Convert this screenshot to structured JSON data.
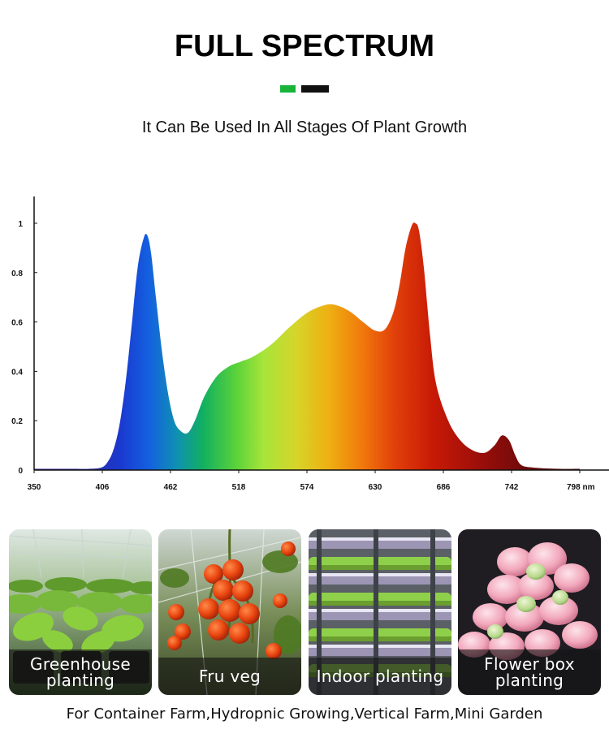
{
  "header": {
    "title": "FULL SPECTRUM",
    "subtitle": "It Can Be Used In All Stages Of Plant Growth",
    "accent_colors": [
      "#18b339",
      "#111111"
    ]
  },
  "chart_data": {
    "type": "area",
    "title": "",
    "xlabel": "",
    "ylabel": "",
    "x_unit": "nm",
    "xlim": [
      350,
      798
    ],
    "ylim": [
      0,
      1.1
    ],
    "x_ticks": [
      350,
      406,
      462,
      518,
      574,
      630,
      686,
      742,
      798
    ],
    "y_ticks": [
      0,
      0.2,
      0.4,
      0.6,
      0.8,
      1
    ],
    "grid": false,
    "legend": "none",
    "fill": "visible-spectrum gradient",
    "series": [
      {
        "x": [
          350,
          380,
          395,
          405,
          410,
          415,
          420,
          425,
          430,
          435,
          440,
          443,
          446,
          450,
          455,
          460,
          465,
          470,
          476,
          482,
          490,
          500,
          510,
          520,
          530,
          545,
          560,
          575,
          590,
          600,
          610,
          620,
          630,
          638,
          645,
          650,
          655,
          660,
          663,
          666,
          670,
          675,
          680,
          690,
          700,
          710,
          720,
          728,
          734,
          740,
          745,
          750,
          760,
          780,
          798
        ],
        "values": [
          0.005,
          0.005,
          0.005,
          0.01,
          0.03,
          0.08,
          0.18,
          0.35,
          0.58,
          0.82,
          0.94,
          0.95,
          0.88,
          0.7,
          0.48,
          0.31,
          0.2,
          0.16,
          0.15,
          0.2,
          0.3,
          0.38,
          0.42,
          0.44,
          0.46,
          0.51,
          0.58,
          0.64,
          0.67,
          0.665,
          0.64,
          0.6,
          0.565,
          0.57,
          0.64,
          0.75,
          0.9,
          0.99,
          1.0,
          0.97,
          0.82,
          0.55,
          0.35,
          0.2,
          0.12,
          0.08,
          0.07,
          0.1,
          0.14,
          0.12,
          0.06,
          0.02,
          0.01,
          0.005,
          0.005
        ]
      }
    ]
  },
  "applications": [
    {
      "label": "Greenhouse planting",
      "lines": [
        "Greenhouse",
        "planting"
      ],
      "scene": "basil-seedlings-icon"
    },
    {
      "label": "Fru veg",
      "lines": [
        "Fru veg"
      ],
      "scene": "tomato-vine-icon"
    },
    {
      "label": "Indoor planting",
      "lines": [
        "Indoor planting"
      ],
      "scene": "vertical-rack-icon"
    },
    {
      "label": "Flower box planting",
      "lines": [
        "Flower box",
        "planting"
      ],
      "scene": "succulent-icon"
    }
  ],
  "footer": {
    "text": "For Container Farm,Hydropnic Growing,Vertical Farm,Mini Garden"
  }
}
